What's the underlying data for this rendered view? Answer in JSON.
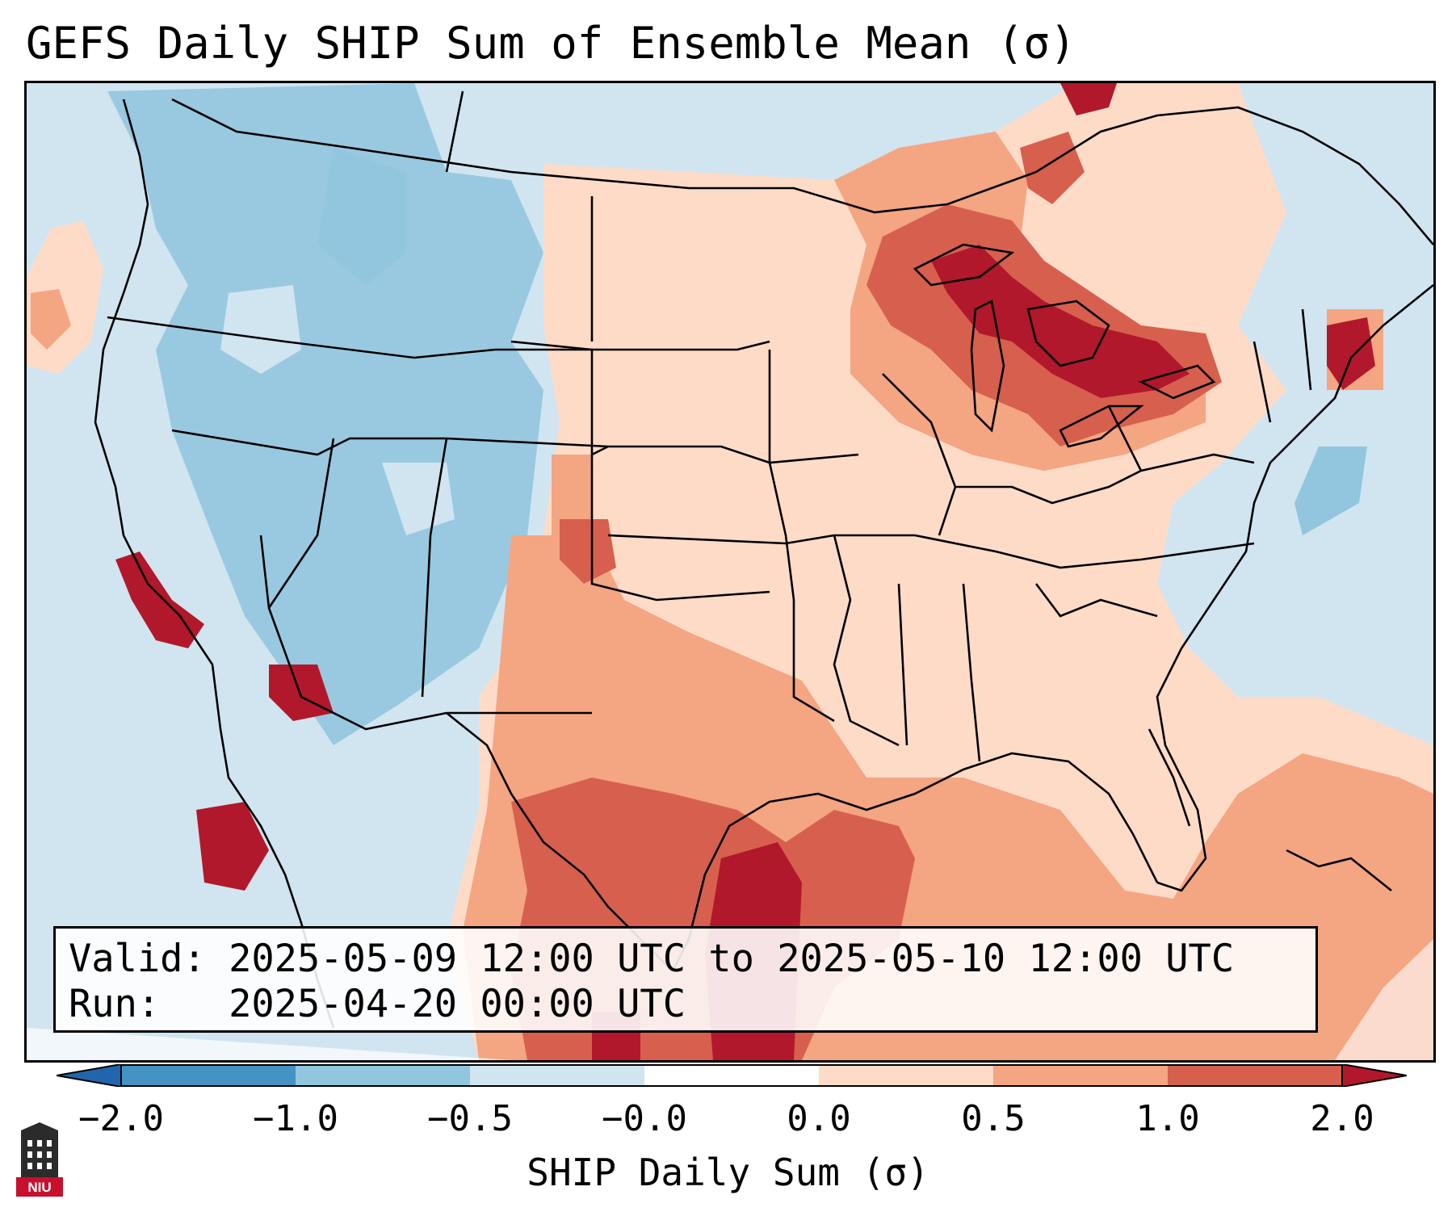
{
  "title": "GEFS Daily SHIP Sum of Ensemble Mean (σ)",
  "info": {
    "valid_line": "Valid: 2025-05-09 12:00 UTC to 2025-05-10 12:00 UTC",
    "run_line": "Run:   2025-04-20 00:00 UTC"
  },
  "colorbar": {
    "label": "SHIP Daily Sum (σ)",
    "ticks": [
      "−2.0",
      "−1.0",
      "−0.5",
      "−0.0",
      "0.0",
      "0.5",
      "1.0",
      "2.0"
    ],
    "colors": {
      "below": "#2166ac",
      "n2_n1": "#4393c3",
      "n1_n05": "#92c5de",
      "n05_0": "#d1e5f0",
      "p0_p05": "#fddbc7",
      "p05_p1": "#f4a582",
      "p1_p2": "#d6604d",
      "above": "#b2182b"
    }
  },
  "map": {
    "region": "Contiguous United States",
    "background_color": "#d3e6f1"
  },
  "logo": {
    "text": "NIU",
    "color": "#c8102e"
  }
}
